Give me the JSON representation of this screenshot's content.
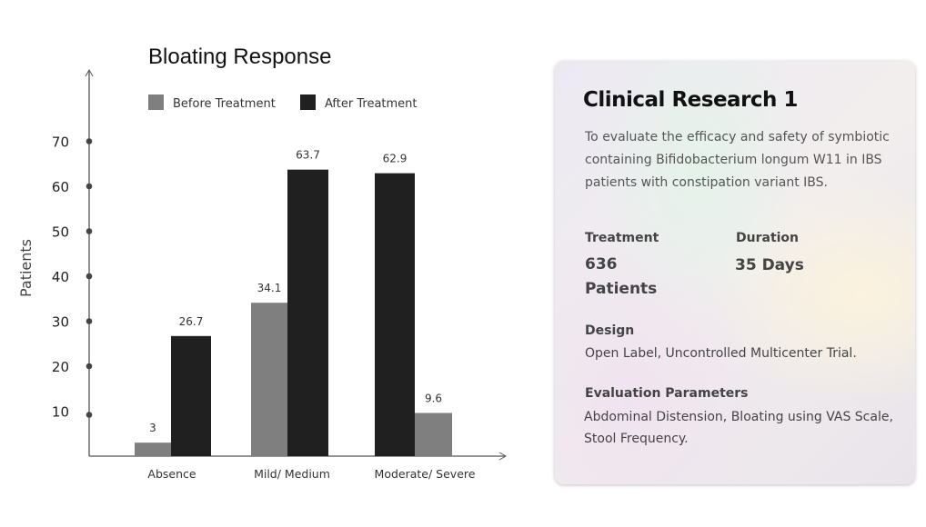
{
  "chart_data": {
    "type": "bar",
    "title": "Bloating Response",
    "ylabel": "Patients",
    "xlabel": "",
    "ylim": [
      0,
      80
    ],
    "yticks": [
      10,
      20,
      30,
      40,
      50,
      60,
      70
    ],
    "categories": [
      "Absence",
      "Mild/ Medium",
      "Moderate/ Severe"
    ],
    "bar_order": [
      [
        "before",
        "after"
      ],
      [
        "before",
        "after"
      ],
      [
        "after",
        "before"
      ]
    ],
    "series": [
      {
        "key": "before",
        "name": "Before Treatment",
        "color": "#7f7f7f",
        "values": [
          3,
          34.1,
          9.6
        ],
        "labels": [
          "3",
          "34.1",
          "9.6"
        ]
      },
      {
        "key": "after",
        "name": "After Treatment",
        "color": "#202020",
        "values": [
          26.7,
          63.7,
          62.9
        ],
        "labels": [
          "26.7",
          "63.7",
          "62.9"
        ]
      }
    ],
    "legend": "top"
  },
  "card": {
    "title": "Clinical Research 1",
    "description": "To evaluate the efficacy and safety of symbiotic containing Bifidobacterium longum W11 in IBS patients with constipation variant IBS.",
    "treatment_label": "Treatment",
    "treatment_value": "636 Patients",
    "duration_label": "Duration",
    "duration_value": "35 Days",
    "design_label": "Design",
    "design_value": "Open Label, Uncontrolled Multicenter Trial.",
    "eval_label": "Evaluation Parameters",
    "eval_value": "Abdominal Distension, Bloating using VAS Scale, Stool Frequency."
  }
}
